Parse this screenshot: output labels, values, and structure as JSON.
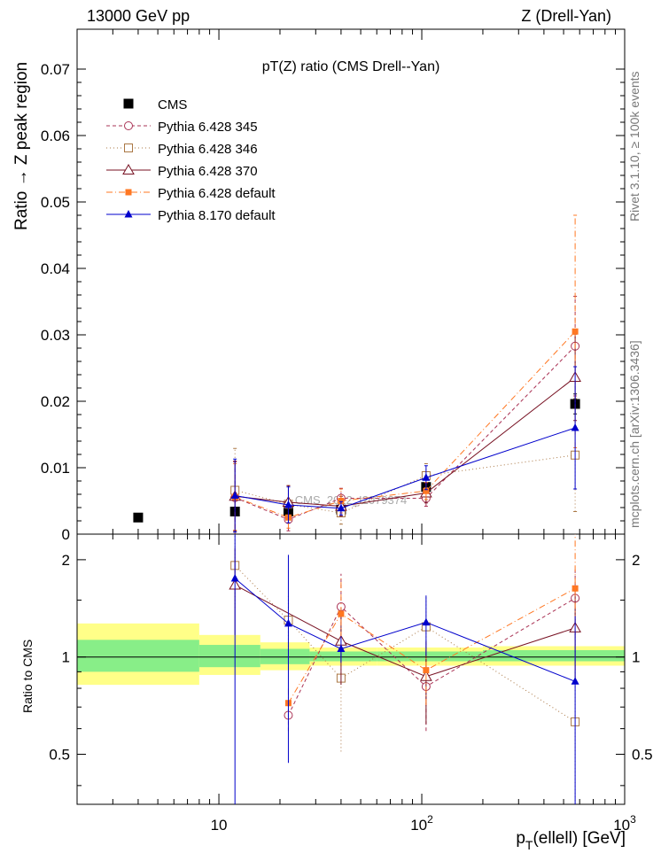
{
  "header": {
    "energy_label": "13000 GeV pp",
    "process_label": "Z (Drell-Yan)",
    "side_rivet": "Rivet 3.1.10, ≥ 100k events",
    "side_mcplots": "mcplots.cern.ch [arXiv:1306.3436]"
  },
  "chart_data": [
    {
      "type": "scatter",
      "title": "pT(Z) ratio (CMS Drell--Yan)",
      "xlabel_main": "p",
      "xlabel_sub": "T",
      "xlabel_rest": "(ellell) [GeV]",
      "ylabel": "Ratio → Z peak region",
      "xscale": "log",
      "xlim": [
        2,
        1000
      ],
      "ylim": [
        0,
        0.076
      ],
      "yticks": [
        0,
        0.01,
        0.02,
        0.03,
        0.04,
        0.05,
        0.06,
        0.07
      ],
      "ytick_labels": [
        "0",
        "0.01",
        "0.02",
        "0.03",
        "0.04",
        "0.05",
        "0.06",
        "0.07"
      ],
      "xticks": [
        10,
        100,
        1000
      ],
      "xtick_labels": [
        "10",
        "10",
        "10"
      ],
      "xtick_sups": [
        "",
        "2",
        "3"
      ],
      "watermark": "CMS_2012_I2079374",
      "legend_position": "top-left",
      "series": [
        {
          "name": "CMS",
          "color": "#000000",
          "marker": "square-filled",
          "line": "none",
          "x": [
            4,
            12,
            22,
            40,
            105,
            570
          ],
          "y": [
            0.0025,
            0.0034,
            0.0034,
            0.0037,
            0.0071,
            0.0196
          ],
          "err": [
            0.0002,
            0.0003,
            0.0003,
            0.0003,
            0.0005,
            0.0015
          ]
        },
        {
          "name": "Pythia 6.428 345",
          "color": "#aa3355",
          "marker": "circle-open",
          "line": "dashed",
          "x": [
            12,
            22,
            40,
            105,
            570
          ],
          "y": [
            0.0055,
            0.0022,
            0.0054,
            0.0054,
            0.0283
          ],
          "err": [
            0.0055,
            0.0017,
            0.0015,
            0.0012,
            0.0075
          ]
        },
        {
          "name": "Pythia 6.428 346",
          "color": "#aa7744",
          "marker": "square-open",
          "line": "dotted",
          "x": [
            12,
            22,
            40,
            105,
            570
          ],
          "y": [
            0.0066,
            0.0045,
            0.0032,
            0.0088,
            0.0119
          ],
          "err": [
            0.0063,
            0.0028,
            0.0017,
            0.0018,
            0.0085
          ]
        },
        {
          "name": "Pythia 6.428 370",
          "color": "#771122",
          "marker": "triangle-open",
          "line": "solid",
          "x": [
            12,
            22,
            40,
            105,
            570
          ],
          "y": [
            0.0057,
            0.0048,
            0.0042,
            0.0062,
            0.0236
          ],
          "err": [
            0.0052,
            0.0025,
            0.0015,
            0.0015,
            0.0065
          ]
        },
        {
          "name": "Pythia 6.428 default",
          "color": "#ff7722",
          "marker": "square-filled",
          "line": "dashdot",
          "x": [
            12,
            22,
            40,
            105,
            570
          ],
          "y": [
            0.0056,
            0.0025,
            0.005,
            0.0065,
            0.0305
          ],
          "err": [
            0.005,
            0.0016,
            0.0018,
            0.0013,
            0.0175
          ]
        },
        {
          "name": "Pythia 8.170 default",
          "color": "#0000cc",
          "marker": "triangle-filled",
          "line": "solid",
          "x": [
            12,
            22,
            40,
            105,
            570
          ],
          "y": [
            0.0058,
            0.0044,
            0.0039,
            0.0085,
            0.016
          ],
          "err": [
            0.0055,
            0.0027,
            0.001,
            0.0018,
            0.0092
          ]
        }
      ]
    },
    {
      "type": "scatter",
      "ylabel": "Ratio to CMS",
      "xscale": "log",
      "xlim": [
        2,
        1000
      ],
      "ylim": [
        0.35,
        2.4
      ],
      "yticks": [
        0.5,
        1,
        2
      ],
      "ytick_labels": [
        "0.5",
        "1",
        "2"
      ],
      "bands": [
        {
          "x0": 2,
          "x1": 8,
          "inner": [
            0.9,
            1.13
          ],
          "outer": [
            0.82,
            1.27
          ]
        },
        {
          "x0": 8,
          "x1": 16,
          "inner": [
            0.93,
            1.09
          ],
          "outer": [
            0.88,
            1.17
          ]
        },
        {
          "x0": 16,
          "x1": 28,
          "inner": [
            0.95,
            1.06
          ],
          "outer": [
            0.91,
            1.11
          ]
        },
        {
          "x0": 28,
          "x1": 60,
          "inner": [
            0.97,
            1.04
          ],
          "outer": [
            0.94,
            1.07
          ]
        },
        {
          "x0": 60,
          "x1": 200,
          "inner": [
            0.97,
            1.04
          ],
          "outer": [
            0.94,
            1.07
          ]
        },
        {
          "x0": 200,
          "x1": 1000,
          "inner": [
            0.97,
            1.05
          ],
          "outer": [
            0.94,
            1.08
          ]
        }
      ],
      "series": [
        {
          "name": "Pythia 6.428 345",
          "x": [
            22,
            40,
            105,
            570
          ],
          "y": [
            0.66,
            1.43,
            0.81,
            1.52
          ],
          "err": [
            0.07,
            0.38,
            0.22,
            0.35
          ]
        },
        {
          "name": "Pythia 6.428 346",
          "x": [
            12,
            22,
            40,
            105,
            570
          ],
          "y": [
            1.92,
            1.3,
            0.86,
            1.24,
            0.63
          ],
          "err": [
            0.5,
            0.25,
            0.35,
            0.3,
            0.7
          ]
        },
        {
          "name": "Pythia 6.428 370",
          "x": [
            12,
            40,
            105,
            570
          ],
          "y": [
            1.67,
            1.12,
            0.87,
            1.23
          ],
          "err": [
            0.5,
            0.3,
            0.25,
            0.4
          ]
        },
        {
          "name": "Pythia 6.428 default",
          "x": [
            22,
            40,
            105,
            570
          ],
          "y": [
            0.72,
            1.36,
            0.91,
            1.63
          ],
          "err": [
            0.08,
            0.4,
            0.2,
            0.8
          ]
        },
        {
          "name": "Pythia 8.170 default",
          "x": [
            12,
            22,
            40,
            105,
            570
          ],
          "y": [
            1.75,
            1.27,
            1.06,
            1.28,
            0.84
          ],
          "err": [
            1.4,
            0.8,
            0.1,
            0.27,
            0.5
          ]
        }
      ]
    }
  ]
}
